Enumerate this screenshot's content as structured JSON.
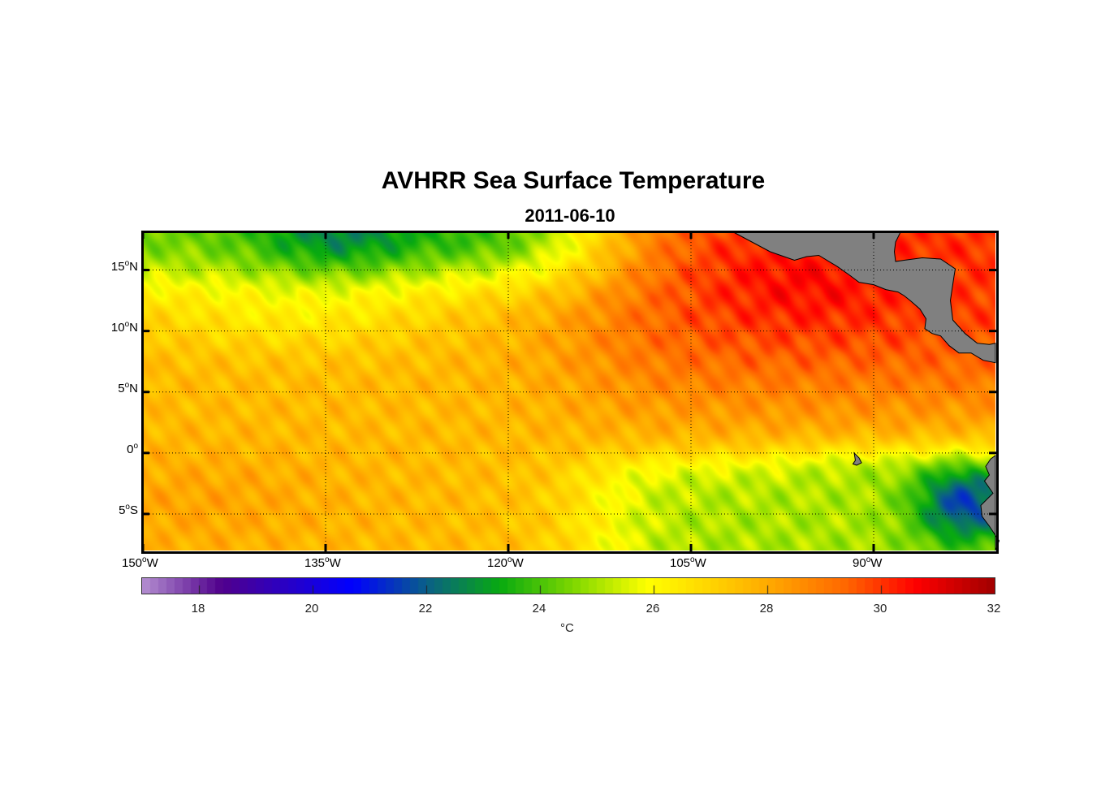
{
  "title": "AVHRR Sea Surface Temperature",
  "subtitle": "2011-06-10",
  "map": {
    "lon_range": [
      -150,
      -80
    ],
    "lat_range": [
      -8,
      18.1
    ],
    "lon_ticks": [
      {
        "value": -150,
        "num": "150",
        "deg": "o",
        "hemi": "W"
      },
      {
        "value": -135,
        "num": "135",
        "deg": "o",
        "hemi": "W"
      },
      {
        "value": -120,
        "num": "120",
        "deg": "o",
        "hemi": "W"
      },
      {
        "value": -105,
        "num": "105",
        "deg": "o",
        "hemi": "W"
      },
      {
        "value": -90,
        "num": "90",
        "deg": "o",
        "hemi": "W"
      }
    ],
    "lat_ticks": [
      {
        "value": 15,
        "num": "15",
        "deg": "o",
        "hemi": "N"
      },
      {
        "value": 10,
        "num": "10",
        "deg": "o",
        "hemi": "N"
      },
      {
        "value": 5,
        "num": "5",
        "deg": "o",
        "hemi": "N"
      },
      {
        "value": 0,
        "num": "0",
        "deg": "o",
        "hemi": ""
      },
      {
        "value": -5,
        "num": "5",
        "deg": "o",
        "hemi": "S"
      }
    ],
    "land_color": "#808080"
  },
  "colorbar": {
    "range": [
      17,
      32
    ],
    "ticks": [
      "18",
      "20",
      "22",
      "24",
      "26",
      "28",
      "30",
      "32"
    ],
    "unit": "°C",
    "stops": [
      [
        17,
        "#b48fd0"
      ],
      [
        18.4,
        "#50008c"
      ],
      [
        20.7,
        "#0000ff"
      ],
      [
        22,
        "#0a5f88"
      ],
      [
        23.3,
        "#08aa10"
      ],
      [
        24.6,
        "#80d800"
      ],
      [
        25.9,
        "#ffff00"
      ],
      [
        27,
        "#ffd400"
      ],
      [
        28,
        "#ffaa00"
      ],
      [
        29.4,
        "#ff6600"
      ],
      [
        30.6,
        "#ff0000"
      ],
      [
        32,
        "#a00000"
      ]
    ]
  }
}
